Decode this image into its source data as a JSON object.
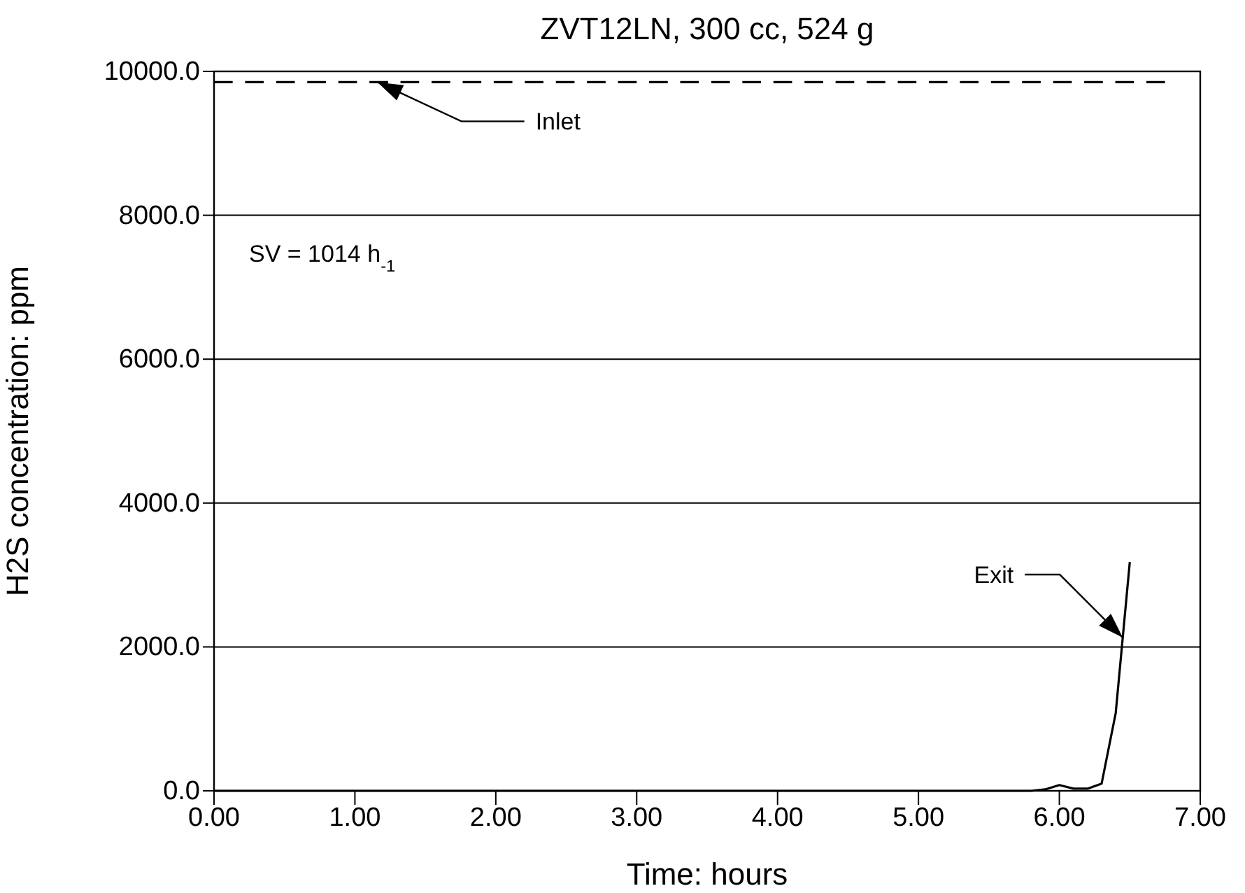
{
  "chart_data": {
    "type": "line",
    "title": "ZVT12LN, 300 cc, 524 g",
    "xlabel": "Time: hours",
    "ylabel": "H2S concentration: ppm",
    "xlim": [
      0,
      7
    ],
    "ylim": [
      0,
      10000
    ],
    "xticks": [
      {
        "value": 0,
        "label": "0.00"
      },
      {
        "value": 1,
        "label": "1.00"
      },
      {
        "value": 2,
        "label": "2.00"
      },
      {
        "value": 3,
        "label": "3.00"
      },
      {
        "value": 4,
        "label": "4.00"
      },
      {
        "value": 5,
        "label": "5.00"
      },
      {
        "value": 6,
        "label": "6.00"
      },
      {
        "value": 7,
        "label": "7.00"
      }
    ],
    "yticks": [
      {
        "value": 0,
        "label": "0.0"
      },
      {
        "value": 2000,
        "label": "2000.0"
      },
      {
        "value": 4000,
        "label": "4000.0"
      },
      {
        "value": 6000,
        "label": "6000.0"
      },
      {
        "value": 8000,
        "label": "8000.0"
      },
      {
        "value": 10000,
        "label": "10000.0"
      }
    ],
    "grid": "y",
    "series": [
      {
        "color": "#000000",
        "line_style": "dashed",
        "x": [
          0,
          6.75
        ],
        "values": [
          9850,
          9850
        ]
      },
      {
        "color": "#000000",
        "line_style": "solid",
        "x": [
          0,
          5.8,
          5.9,
          6.0,
          6.1,
          6.2,
          6.3,
          6.4,
          6.5
        ],
        "values": [
          0,
          0,
          20,
          80,
          30,
          30,
          100,
          1080,
          3180
        ]
      }
    ],
    "annotations": [
      {
        "text": "Inlet",
        "x": 1.16,
        "y": 9850
      },
      {
        "text": "Exit",
        "x": 6.45,
        "y": 2130
      },
      "SV = 1014 h$_{-1}$"
    ]
  }
}
